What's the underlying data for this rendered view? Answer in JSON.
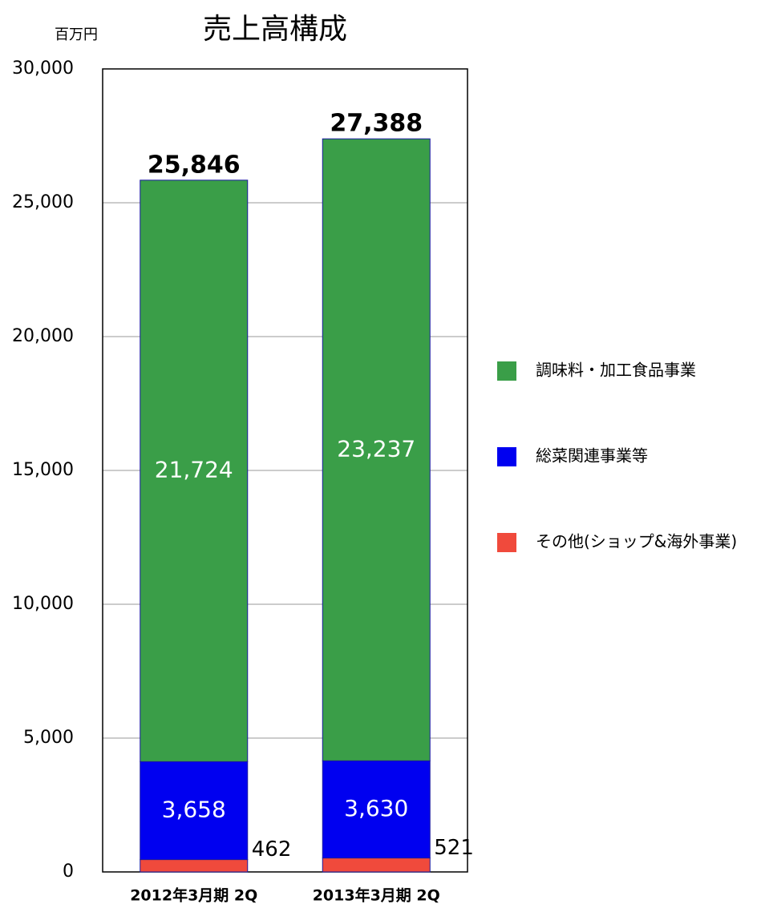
{
  "chart_data": {
    "type": "stacked-bar",
    "title": "売上高構成",
    "y_unit": "百万円",
    "categories": [
      "2012年3月期 2Q",
      "2013年3月期 2Q"
    ],
    "series": [
      {
        "name": "その他(ショップ&海外事業)",
        "color": "#f04a3c",
        "values": [
          462,
          521
        ],
        "value_labels": [
          "462",
          "521"
        ]
      },
      {
        "name": "総菜関連事業等",
        "color": "#0000f0",
        "values": [
          3658,
          3630
        ],
        "value_labels": [
          "3,658",
          "3,630"
        ]
      },
      {
        "name": "調味料・加工食品事業",
        "color": "#3a9e48",
        "values": [
          21724,
          23237
        ],
        "value_labels": [
          "21,724",
          "23,237"
        ]
      }
    ],
    "totals": {
      "values": [
        25846,
        27388
      ],
      "value_labels": [
        "25,846",
        "27,388"
      ]
    },
    "ylim": [
      0,
      30000
    ],
    "yticks": [
      0,
      {
        "value": 5000,
        "label": "5,000"
      },
      {
        "value": 10000,
        "label": "10,000"
      },
      {
        "value": 15000,
        "label": "15,000"
      },
      {
        "value": 20000,
        "label": "20,000"
      },
      {
        "value": 25000,
        "label": "25,000"
      },
      {
        "value": 30000,
        "label": "30,000"
      }
    ],
    "grid": true,
    "legend": "right"
  }
}
